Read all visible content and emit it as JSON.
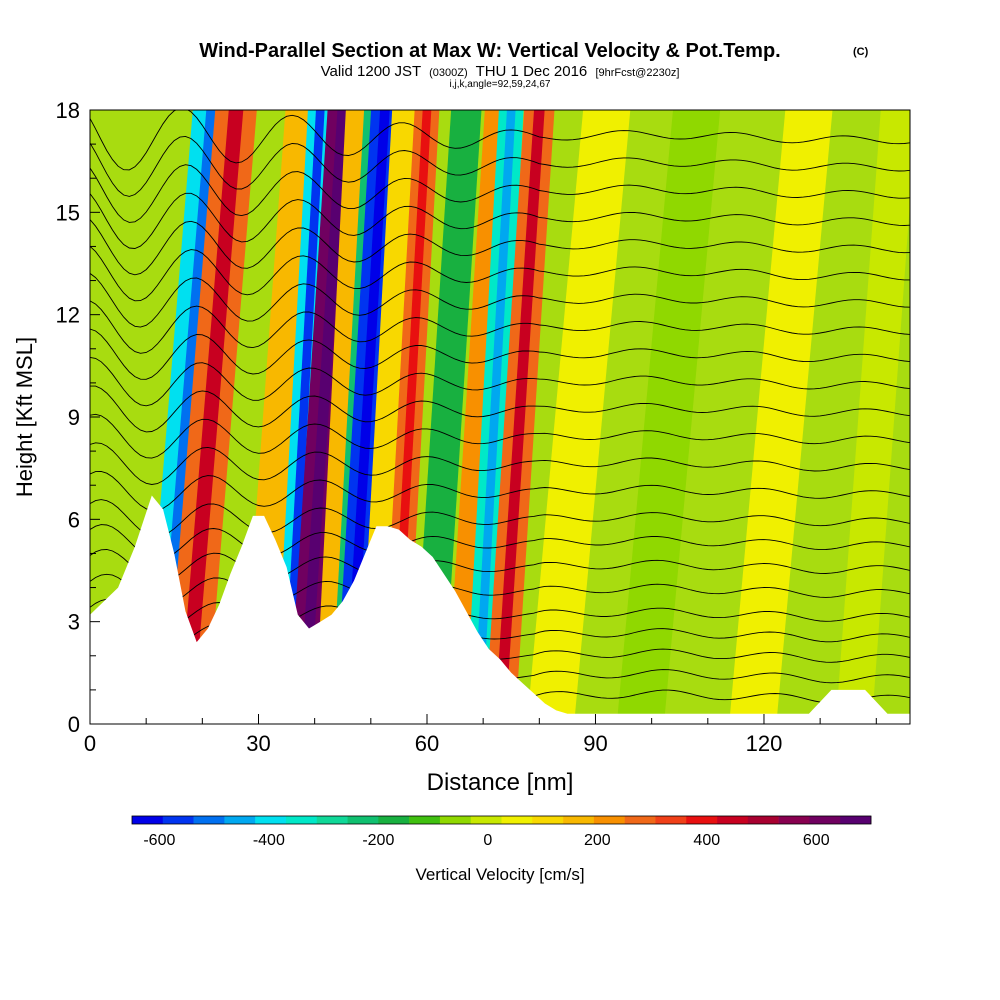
{
  "header": {
    "title": "Wind-Parallel Section at Max W: Vertical Velocity & Pot.Temp.",
    "title_mark": "(C)",
    "subtitle_valid": "Valid 1200 JST",
    "subtitle_utc": "(0300Z)",
    "subtitle_date": "THU 1 Dec 2016",
    "subtitle_fcst": "[9hrFcst@2230z]",
    "subtitle_indices": "i,j,k,angle=92,59,24,67"
  },
  "chart_data": {
    "type": "heatmap",
    "title": "Wind-Parallel Section at Max W: Vertical Velocity & Pot.Temp.",
    "xlabel": "Distance [nm]",
    "ylabel": "Height [Kft MSL]",
    "xlim": [
      0,
      146
    ],
    "ylim": [
      0,
      18
    ],
    "x_ticks": [
      0,
      30,
      60,
      90,
      120
    ],
    "y_ticks": [
      0,
      3,
      6,
      9,
      12,
      15,
      18
    ],
    "grid": false,
    "colorbar": {
      "label": "Vertical Velocity [cm/s]",
      "ticks": [
        -600,
        -400,
        -200,
        0,
        200,
        400,
        600
      ],
      "range": [
        -650,
        700
      ],
      "colors": [
        "#0000e8",
        "#0034f0",
        "#0070f0",
        "#00a8f0",
        "#00e0f0",
        "#00e8c8",
        "#10d898",
        "#10c070",
        "#18b040",
        "#40c010",
        "#90d800",
        "#c8e800",
        "#f0f000",
        "#f8d800",
        "#f8b800",
        "#f89000",
        "#f06818",
        "#f04018",
        "#e81010",
        "#c80020",
        "#a80030",
        "#880050",
        "#700060",
        "#580070"
      ]
    },
    "terrain_kft": {
      "x": [
        0,
        5,
        8,
        11,
        13,
        15,
        17,
        19,
        21,
        23,
        25,
        27,
        29,
        31,
        33,
        35,
        37,
        39,
        41,
        43,
        45,
        47,
        49,
        51,
        53,
        55,
        57,
        59,
        61,
        63,
        65,
        67,
        69,
        71,
        73,
        75,
        77,
        79,
        81,
        83,
        85,
        88,
        95,
        110,
        128,
        132,
        138,
        142,
        146
      ],
      "h": [
        3.2,
        4.0,
        5.2,
        6.7,
        6.3,
        5.0,
        3.3,
        2.4,
        2.8,
        3.5,
        4.4,
        5.2,
        6.1,
        6.1,
        5.4,
        4.6,
        3.2,
        2.8,
        3.0,
        3.2,
        3.6,
        4.2,
        5.0,
        5.8,
        5.8,
        5.7,
        5.4,
        5.2,
        4.9,
        4.4,
        3.9,
        3.3,
        2.7,
        2.2,
        1.9,
        1.5,
        1.2,
        0.9,
        0.6,
        0.4,
        0.3,
        0.3,
        0.3,
        0.3,
        0.3,
        1.0,
        1.0,
        0.3,
        0.3
      ]
    },
    "vertical_velocity_bands": [
      {
        "x_base": 13,
        "x_top": 18,
        "w": -380
      },
      {
        "x_base": 17,
        "x_top": 22,
        "w": 300
      },
      {
        "x_base": 30,
        "x_top": 34,
        "w": 180
      },
      {
        "x_base": 35,
        "x_top": 37,
        "w": -420
      },
      {
        "x_base": 38,
        "x_top": 41,
        "w": 640
      },
      {
        "x_base": 42,
        "x_top": 43.5,
        "w": 150
      },
      {
        "x_base": 45,
        "x_top": 47,
        "w": -250
      },
      {
        "x_base": 46,
        "x_top": 48.5,
        "w": -560
      },
      {
        "x_base": 50,
        "x_top": 52,
        "w": 120
      },
      {
        "x_base": 54,
        "x_top": 56,
        "w": 260
      },
      {
        "x_base": 60,
        "x_top": 63,
        "w": -150
      },
      {
        "x_base": 66,
        "x_top": 69,
        "w": 200
      },
      {
        "x_base": 69,
        "x_top": 71,
        "w": -330
      },
      {
        "x_base": 73,
        "x_top": 76,
        "w": 280
      },
      {
        "x_base": 82,
        "x_top": 88,
        "w": 40
      },
      {
        "x_base": 98,
        "x_top": 104,
        "w": -40
      },
      {
        "x_base": 118,
        "x_top": 124,
        "w": 30
      },
      {
        "x_base": 136,
        "x_top": 140,
        "w": -30
      }
    ],
    "isentrope_base_heights_kft": [
      0.8,
      1.4,
      2.0,
      2.6,
      3.2,
      3.9,
      4.6,
      5.3,
      6.0,
      6.8,
      7.6,
      8.4,
      9.2,
      10.0,
      10.8,
      11.6,
      12.4,
      13.2,
      14.0,
      14.8,
      15.6,
      16.4,
      17.2
    ]
  }
}
